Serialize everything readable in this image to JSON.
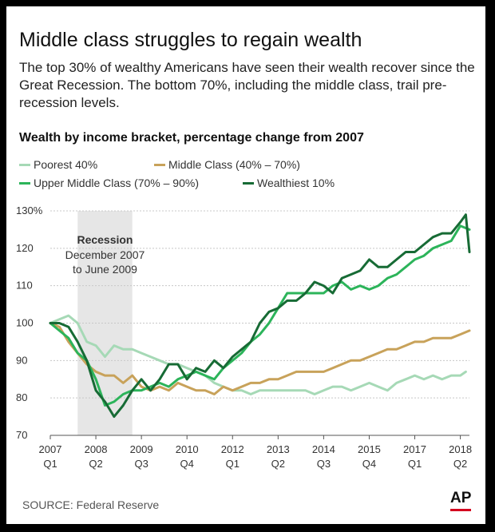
{
  "title": "Middle class struggles to regain wealth",
  "subtitle": "The top 30% of wealthy Americans have seen their wealth recover since the Great Recession. The bottom 70%, including the middle class, trail pre-recession levels.",
  "chart_heading": "Wealth by income bracket, percentage change from 2007",
  "legend": [
    {
      "label": "Poorest 40%",
      "color": "#a6d9b6"
    },
    {
      "label": "Middle Class (40% – 70%)",
      "color": "#c8a25a"
    },
    {
      "label": "Upper Middle Class (70% – 90%)",
      "color": "#2cb45a"
    },
    {
      "label": "Wealthiest 10%",
      "color": "#176b35"
    }
  ],
  "recession": {
    "title": "Recession",
    "lines": [
      "December 2007",
      "to June 2009"
    ],
    "start": 2007.75,
    "end": 2009.25,
    "color": "#e6e6e6"
  },
  "source": "SOURCE: Federal Reserve",
  "logo": "AP",
  "chart_data": {
    "type": "line",
    "ylim": [
      70,
      130
    ],
    "xlim": [
      2007.0,
      2018.5
    ],
    "grid": true,
    "y_ticks": [
      "130%",
      "120",
      "110",
      "100",
      "90",
      "80",
      "70"
    ],
    "y_tick_values": [
      130,
      120,
      110,
      100,
      90,
      80,
      70
    ],
    "x_ticks": [
      {
        "year": "2007",
        "quarter": "Q1",
        "x": 2007.0
      },
      {
        "year": "2008",
        "quarter": "Q2",
        "x": 2008.25
      },
      {
        "year": "2009",
        "quarter": "Q3",
        "x": 2009.5
      },
      {
        "year": "2010",
        "quarter": "Q4",
        "x": 2010.75
      },
      {
        "year": "2012",
        "quarter": "Q1",
        "x": 2012.0
      },
      {
        "year": "2013",
        "quarter": "Q2",
        "x": 2013.25
      },
      {
        "year": "2014",
        "quarter": "Q3",
        "x": 2014.5
      },
      {
        "year": "2015",
        "quarter": "Q4",
        "x": 2015.75
      },
      {
        "year": "2017",
        "quarter": "Q1",
        "x": 2017.0
      },
      {
        "year": "2018",
        "quarter": "Q2",
        "x": 2018.25
      }
    ],
    "series": [
      {
        "name": "Poorest 40%",
        "color": "#a6d9b6",
        "x": [
          2007.0,
          2007.25,
          2007.5,
          2007.75,
          2008.0,
          2008.25,
          2008.5,
          2008.75,
          2009.0,
          2009.25,
          2009.5,
          2009.75,
          2010.0,
          2010.25,
          2010.5,
          2010.75,
          2011.0,
          2011.25,
          2011.5,
          2011.75,
          2012.0,
          2012.25,
          2012.5,
          2012.75,
          2013.0,
          2013.25,
          2013.5,
          2013.75,
          2014.0,
          2014.25,
          2014.5,
          2014.75,
          2015.0,
          2015.25,
          2015.5,
          2015.75,
          2016.0,
          2016.25,
          2016.5,
          2016.75,
          2017.0,
          2017.25,
          2017.5,
          2017.75,
          2018.0,
          2018.25,
          2018.4
        ],
        "values": [
          100,
          101,
          102,
          100,
          95,
          94,
          91,
          94,
          93,
          93,
          92,
          91,
          90,
          89,
          89,
          88,
          87,
          86,
          84,
          83,
          82,
          82,
          81,
          82,
          82,
          82,
          82,
          82,
          82,
          81,
          82,
          83,
          83,
          82,
          83,
          84,
          83,
          82,
          84,
          85,
          86,
          85,
          86,
          85,
          86,
          86,
          87
        ]
      },
      {
        "name": "Middle Class (40% – 70%)",
        "color": "#c8a25a",
        "x": [
          2007.0,
          2007.25,
          2007.5,
          2007.75,
          2008.0,
          2008.25,
          2008.5,
          2008.75,
          2009.0,
          2009.25,
          2009.5,
          2009.75,
          2010.0,
          2010.25,
          2010.5,
          2010.75,
          2011.0,
          2011.25,
          2011.5,
          2011.75,
          2012.0,
          2012.25,
          2012.5,
          2012.75,
          2013.0,
          2013.25,
          2013.5,
          2013.75,
          2014.0,
          2014.25,
          2014.5,
          2014.75,
          2015.0,
          2015.25,
          2015.5,
          2015.75,
          2016.0,
          2016.25,
          2016.5,
          2016.75,
          2017.0,
          2017.25,
          2017.5,
          2017.75,
          2018.0,
          2018.25,
          2018.5
        ],
        "values": [
          100,
          99,
          95,
          92,
          89,
          87,
          86,
          86,
          84,
          86,
          83,
          82,
          83,
          82,
          84,
          83,
          82,
          82,
          81,
          83,
          82,
          83,
          84,
          84,
          85,
          85,
          86,
          87,
          87,
          87,
          87,
          88,
          89,
          90,
          90,
          91,
          92,
          93,
          93,
          94,
          95,
          95,
          96,
          96,
          96,
          97,
          98
        ]
      },
      {
        "name": "Upper Middle Class (70% – 90%)",
        "color": "#2cb45a",
        "x": [
          2007.0,
          2007.25,
          2007.5,
          2007.75,
          2008.0,
          2008.25,
          2008.5,
          2008.75,
          2009.0,
          2009.25,
          2009.5,
          2009.75,
          2010.0,
          2010.25,
          2010.5,
          2010.75,
          2011.0,
          2011.25,
          2011.5,
          2011.75,
          2012.0,
          2012.25,
          2012.5,
          2012.75,
          2013.0,
          2013.25,
          2013.5,
          2013.75,
          2014.0,
          2014.25,
          2014.5,
          2014.75,
          2015.0,
          2015.25,
          2015.5,
          2015.75,
          2016.0,
          2016.25,
          2016.5,
          2016.75,
          2017.0,
          2017.25,
          2017.5,
          2017.75,
          2018.0,
          2018.25,
          2018.5
        ],
        "values": [
          100,
          98,
          96,
          92,
          90,
          85,
          78,
          79,
          81,
          82,
          82,
          83,
          84,
          83,
          85,
          86,
          87,
          86,
          85,
          88,
          90,
          92,
          95,
          97,
          100,
          104,
          108,
          108,
          108,
          108,
          108,
          110,
          111,
          109,
          110,
          109,
          110,
          112,
          113,
          115,
          117,
          118,
          120,
          121,
          122,
          126,
          125
        ]
      },
      {
        "name": "Wealthiest 10%",
        "color": "#176b35",
        "x": [
          2007.0,
          2007.25,
          2007.5,
          2007.75,
          2008.0,
          2008.25,
          2008.5,
          2008.75,
          2009.0,
          2009.25,
          2009.5,
          2009.75,
          2010.0,
          2010.25,
          2010.5,
          2010.75,
          2011.0,
          2011.25,
          2011.5,
          2011.75,
          2012.0,
          2012.25,
          2012.5,
          2012.75,
          2013.0,
          2013.25,
          2013.5,
          2013.75,
          2014.0,
          2014.25,
          2014.5,
          2014.75,
          2015.0,
          2015.25,
          2015.5,
          2015.75,
          2016.0,
          2016.25,
          2016.5,
          2016.75,
          2017.0,
          2017.25,
          2017.5,
          2017.75,
          2018.0,
          2018.25,
          2018.4,
          2018.5
        ],
        "values": [
          100,
          100,
          99,
          95,
          90,
          82,
          79,
          75,
          78,
          82,
          85,
          82,
          85,
          89,
          89,
          85,
          88,
          87,
          90,
          88,
          91,
          93,
          95,
          100,
          103,
          104,
          106,
          106,
          108,
          111,
          110,
          108,
          112,
          113,
          114,
          117,
          115,
          115,
          117,
          119,
          119,
          121,
          123,
          124,
          124,
          127,
          129,
          119
        ]
      }
    ]
  }
}
